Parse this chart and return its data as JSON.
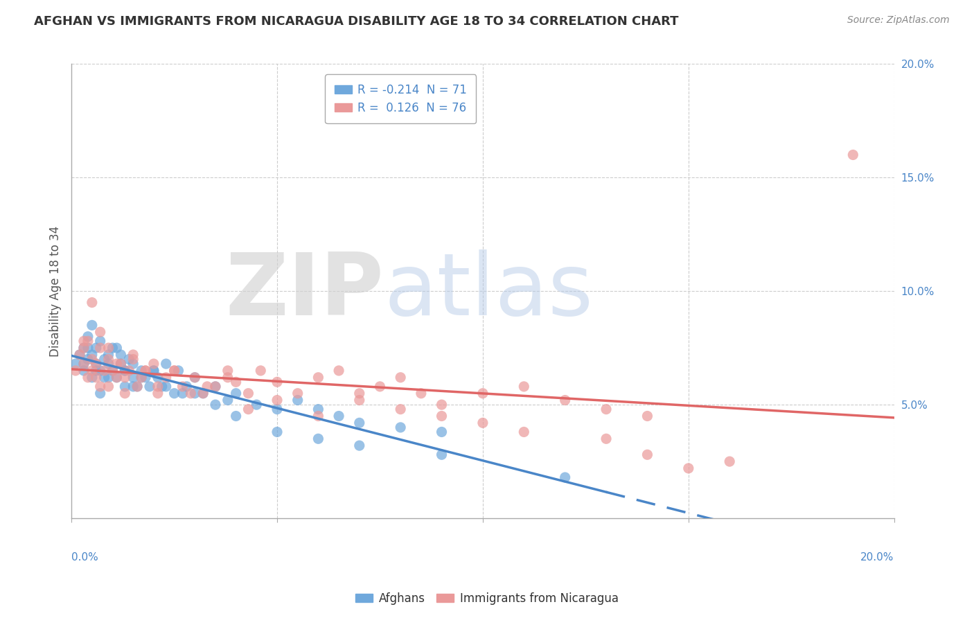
{
  "title": "AFGHAN VS IMMIGRANTS FROM NICARAGUA DISABILITY AGE 18 TO 34 CORRELATION CHART",
  "source": "Source: ZipAtlas.com",
  "ylabel": "Disability Age 18 to 34",
  "xlim": [
    0.0,
    0.2
  ],
  "ylim": [
    0.0,
    0.2
  ],
  "legend_r_afghan": "-0.214",
  "legend_n_afghan": "71",
  "legend_r_nicaragua": "0.126",
  "legend_n_nicaragua": "76",
  "afghan_color": "#6fa8dc",
  "nicaragua_color": "#ea9999",
  "afghan_trend_color": "#4a86c8",
  "nicaragua_trend_color": "#e06666",
  "afghan_scatter_x": [
    0.001,
    0.002,
    0.003,
    0.003,
    0.004,
    0.004,
    0.005,
    0.005,
    0.006,
    0.006,
    0.007,
    0.007,
    0.008,
    0.008,
    0.009,
    0.009,
    0.01,
    0.01,
    0.011,
    0.012,
    0.012,
    0.013,
    0.013,
    0.014,
    0.015,
    0.015,
    0.016,
    0.017,
    0.018,
    0.019,
    0.02,
    0.021,
    0.022,
    0.023,
    0.025,
    0.026,
    0.028,
    0.03,
    0.032,
    0.035,
    0.038,
    0.04,
    0.045,
    0.05,
    0.055,
    0.06,
    0.065,
    0.07,
    0.08,
    0.09,
    0.003,
    0.004,
    0.005,
    0.006,
    0.007,
    0.009,
    0.011,
    0.013,
    0.015,
    0.017,
    0.02,
    0.023,
    0.027,
    0.03,
    0.035,
    0.04,
    0.05,
    0.06,
    0.07,
    0.09,
    0.12
  ],
  "afghan_scatter_y": [
    0.068,
    0.072,
    0.065,
    0.075,
    0.07,
    0.08,
    0.062,
    0.085,
    0.068,
    0.075,
    0.065,
    0.078,
    0.07,
    0.062,
    0.068,
    0.072,
    0.065,
    0.075,
    0.062,
    0.068,
    0.072,
    0.065,
    0.058,
    0.07,
    0.062,
    0.068,
    0.058,
    0.065,
    0.062,
    0.058,
    0.065,
    0.062,
    0.058,
    0.068,
    0.055,
    0.065,
    0.058,
    0.062,
    0.055,
    0.058,
    0.052,
    0.055,
    0.05,
    0.048,
    0.052,
    0.048,
    0.045,
    0.042,
    0.04,
    0.038,
    0.068,
    0.075,
    0.072,
    0.065,
    0.055,
    0.062,
    0.075,
    0.065,
    0.058,
    0.062,
    0.065,
    0.058,
    0.055,
    0.055,
    0.05,
    0.045,
    0.038,
    0.035,
    0.032,
    0.028,
    0.018
  ],
  "nicaragua_scatter_x": [
    0.001,
    0.002,
    0.003,
    0.003,
    0.004,
    0.004,
    0.005,
    0.005,
    0.006,
    0.006,
    0.007,
    0.007,
    0.008,
    0.009,
    0.009,
    0.01,
    0.011,
    0.012,
    0.013,
    0.014,
    0.015,
    0.016,
    0.017,
    0.018,
    0.02,
    0.021,
    0.023,
    0.025,
    0.027,
    0.03,
    0.032,
    0.035,
    0.038,
    0.04,
    0.043,
    0.046,
    0.05,
    0.055,
    0.06,
    0.065,
    0.07,
    0.075,
    0.08,
    0.085,
    0.09,
    0.1,
    0.11,
    0.12,
    0.13,
    0.14,
    0.003,
    0.005,
    0.007,
    0.009,
    0.011,
    0.013,
    0.015,
    0.018,
    0.021,
    0.025,
    0.029,
    0.033,
    0.038,
    0.043,
    0.05,
    0.06,
    0.07,
    0.08,
    0.09,
    0.1,
    0.11,
    0.13,
    0.14,
    0.15,
    0.16,
    0.19
  ],
  "nicaragua_scatter_y": [
    0.065,
    0.072,
    0.068,
    0.075,
    0.062,
    0.078,
    0.065,
    0.07,
    0.068,
    0.062,
    0.075,
    0.058,
    0.065,
    0.07,
    0.058,
    0.065,
    0.062,
    0.068,
    0.055,
    0.065,
    0.07,
    0.058,
    0.062,
    0.065,
    0.068,
    0.055,
    0.062,
    0.065,
    0.058,
    0.062,
    0.055,
    0.058,
    0.065,
    0.06,
    0.055,
    0.065,
    0.06,
    0.055,
    0.062,
    0.065,
    0.055,
    0.058,
    0.062,
    0.055,
    0.05,
    0.055,
    0.058,
    0.052,
    0.048,
    0.045,
    0.078,
    0.095,
    0.082,
    0.075,
    0.068,
    0.062,
    0.072,
    0.065,
    0.058,
    0.065,
    0.055,
    0.058,
    0.062,
    0.048,
    0.052,
    0.045,
    0.052,
    0.048,
    0.045,
    0.042,
    0.038,
    0.035,
    0.028,
    0.022,
    0.025,
    0.16
  ]
}
